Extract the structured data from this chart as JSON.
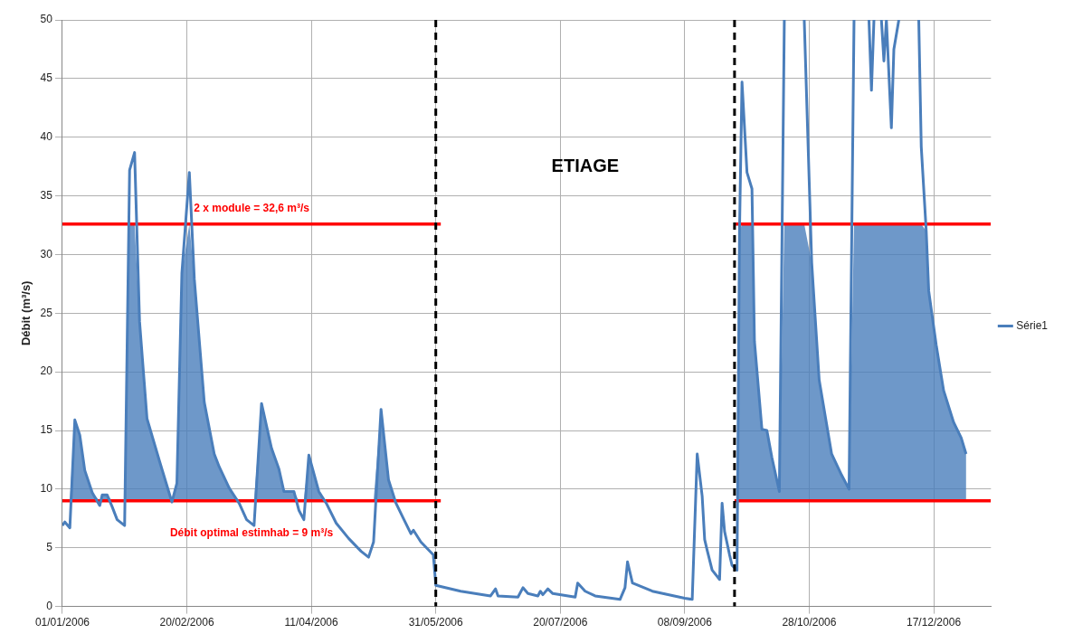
{
  "chart_data": {
    "type": "line",
    "ylabel": "Débit (m³/s)",
    "xlim": [
      "2006-01-01",
      "2007-01-09"
    ],
    "ylim": [
      0,
      50
    ],
    "xticks": [
      {
        "value": "2006-01-01",
        "label": "01/01/2006"
      },
      {
        "value": "2006-02-20",
        "label": "20/02/2006"
      },
      {
        "value": "2006-04-11",
        "label": "11/04/2006"
      },
      {
        "value": "2006-05-31",
        "label": "31/05/2006"
      },
      {
        "value": "2006-07-20",
        "label": "20/07/2006"
      },
      {
        "value": "2006-09-08",
        "label": "08/09/2006"
      },
      {
        "value": "2006-10-28",
        "label": "28/10/2006"
      },
      {
        "value": "2006-12-17",
        "label": "17/12/2006"
      }
    ],
    "yticks": [
      0,
      5,
      10,
      15,
      20,
      25,
      30,
      35,
      40,
      45,
      50
    ],
    "grid": true,
    "legend": "right",
    "marker": "none",
    "line_style": "solid",
    "series": [
      {
        "name": "Série1",
        "color": "#4a7ebb",
        "x": [
          "2006-01-01",
          "2006-01-02",
          "2006-01-04",
          "2006-01-06",
          "2006-01-08",
          "2006-01-10",
          "2006-01-13",
          "2006-01-16",
          "2006-01-17",
          "2006-01-19",
          "2006-01-21",
          "2006-01-23",
          "2006-01-26",
          "2006-01-28",
          "2006-01-30",
          "2006-02-01",
          "2006-02-04",
          "2006-02-09",
          "2006-02-14",
          "2006-02-16",
          "2006-02-18",
          "2006-02-21",
          "2006-02-23",
          "2006-02-27",
          "2006-03-03",
          "2006-03-05",
          "2006-03-09",
          "2006-03-13",
          "2006-03-16",
          "2006-03-19",
          "2006-03-22",
          "2006-03-26",
          "2006-03-29",
          "2006-03-31",
          "2006-04-04",
          "2006-04-06",
          "2006-04-08",
          "2006-04-10",
          "2006-04-14",
          "2006-04-17",
          "2006-04-21",
          "2006-04-26",
          "2006-05-01",
          "2006-05-04",
          "2006-05-06",
          "2006-05-09",
          "2006-05-12",
          "2006-05-15",
          "2006-05-18",
          "2006-05-21",
          "2006-05-22",
          "2006-05-25",
          "2006-05-30",
          "2006-05-31",
          "2006-06-10",
          "2006-06-22",
          "2006-06-24",
          "2006-06-25",
          "2006-07-03",
          "2006-07-05",
          "2006-07-07",
          "2006-07-11",
          "2006-07-12",
          "2006-07-13",
          "2006-07-15",
          "2006-07-17",
          "2006-07-26",
          "2006-07-27",
          "2006-07-30",
          "2006-08-03",
          "2006-08-13",
          "2006-08-15",
          "2006-08-16",
          "2006-08-18",
          "2006-08-26",
          "2006-09-08",
          "2006-09-11",
          "2006-09-13",
          "2006-09-15",
          "2006-09-16",
          "2006-09-17",
          "2006-09-19",
          "2006-09-22",
          "2006-09-23",
          "2006-09-24",
          "2006-09-26",
          "2006-09-27",
          "2006-09-29",
          "2006-09-30",
          "2006-10-01",
          "2006-10-03",
          "2006-10-05",
          "2006-10-06",
          "2006-10-09",
          "2006-10-11",
          "2006-10-13",
          "2006-10-16",
          "2006-10-18",
          "2006-10-22",
          "2006-10-26",
          "2006-10-29",
          "2006-11-01",
          "2006-11-06",
          "2006-11-10",
          "2006-11-13",
          "2006-11-15",
          "2006-11-18",
          "2006-11-21",
          "2006-11-22",
          "2006-11-23",
          "2006-11-24",
          "2006-11-26",
          "2006-11-27",
          "2006-11-28",
          "2006-11-30",
          "2006-12-01",
          "2006-12-03",
          "2006-12-07",
          "2006-12-11",
          "2006-12-12",
          "2006-12-14",
          "2006-12-15",
          "2006-12-18",
          "2006-12-21",
          "2006-12-25",
          "2006-12-28",
          "2006-12-30"
        ],
        "values": [
          6.9,
          7.2,
          6.7,
          15.9,
          14.6,
          11.6,
          9.7,
          8.6,
          9.5,
          9.5,
          8.5,
          7.4,
          6.9,
          37.2,
          38.7,
          24.3,
          16.0,
          12.4,
          8.9,
          10.5,
          28.4,
          37.0,
          27.9,
          17.4,
          13.0,
          11.9,
          10.1,
          8.8,
          7.4,
          6.9,
          17.3,
          13.5,
          11.7,
          9.8,
          9.8,
          8.2,
          7.4,
          12.9,
          9.8,
          8.8,
          7.1,
          5.8,
          4.7,
          4.2,
          5.5,
          16.8,
          10.8,
          8.8,
          7.5,
          6.2,
          6.5,
          5.5,
          4.4,
          1.8,
          1.3,
          0.9,
          1.5,
          0.9,
          0.8,
          1.6,
          1.1,
          0.9,
          1.3,
          1.0,
          1.5,
          1.1,
          0.8,
          2.0,
          1.3,
          0.9,
          0.6,
          1.6,
          3.8,
          2.0,
          1.3,
          0.7,
          0.6,
          13.0,
          9.4,
          5.7,
          4.8,
          3.1,
          2.3,
          8.8,
          6.4,
          4.4,
          3.5,
          3.1,
          32.0,
          44.7,
          37.0,
          35.6,
          22.6,
          15.1,
          15.0,
          12.7,
          9.8,
          50,
          null,
          50,
          29.3,
          19.3,
          13.0,
          11.2,
          10.0,
          50,
          null,
          50,
          44.0,
          50,
          null,
          50,
          46.5,
          50,
          40.8,
          47.5,
          50,
          null,
          50,
          39.2,
          32.0,
          26.9,
          22.3,
          18.4,
          15.7,
          14.4,
          13.0
        ],
        "lower": [
          9,
          9,
          9,
          9,
          9,
          9,
          9,
          9,
          9,
          9,
          9,
          9,
          9,
          9,
          9,
          9,
          9,
          9,
          9,
          9,
          9,
          9,
          9,
          9,
          9,
          9,
          9,
          9,
          9,
          9,
          9,
          9,
          9,
          9,
          9,
          9,
          9,
          9,
          9,
          9,
          9,
          9,
          9,
          9,
          9,
          9,
          9,
          9,
          9,
          9,
          9,
          9,
          9,
          9,
          null,
          null,
          null,
          null,
          null,
          null,
          null,
          null,
          null,
          null,
          null,
          null,
          null,
          null,
          null,
          null,
          null,
          null,
          null,
          null,
          null,
          null,
          null,
          null,
          null,
          null,
          null,
          null,
          null,
          null,
          null,
          null,
          null,
          9,
          9,
          9,
          9,
          9,
          9,
          9,
          9,
          9,
          9,
          9,
          9,
          9,
          9,
          9,
          9,
          9,
          9,
          9,
          9,
          9,
          9,
          9,
          9,
          9,
          9,
          9,
          9,
          9,
          9,
          9,
          9,
          9,
          9,
          9,
          9,
          9,
          9,
          9,
          9
        ],
        "upper": [
          9,
          9,
          9,
          15.9,
          14.6,
          11.6,
          9.7,
          9,
          9.5,
          9.5,
          9,
          9,
          9,
          32.6,
          32.6,
          24.3,
          16.0,
          12.4,
          9,
          10.5,
          28.4,
          32.6,
          27.9,
          17.4,
          13.0,
          11.9,
          10.1,
          9,
          9,
          9,
          17.3,
          13.5,
          11.7,
          9.8,
          9.8,
          9,
          9,
          12.9,
          9.8,
          9,
          9,
          9,
          9,
          9,
          9,
          16.8,
          10.8,
          9,
          9,
          9,
          9,
          9,
          9,
          9,
          null,
          null,
          null,
          null,
          null,
          null,
          null,
          null,
          null,
          null,
          null,
          null,
          null,
          null,
          null,
          null,
          null,
          null,
          null,
          null,
          null,
          null,
          null,
          null,
          null,
          null,
          null,
          null,
          null,
          null,
          null,
          null,
          null,
          9,
          32.0,
          32.6,
          32.6,
          32.6,
          22.6,
          15.1,
          15.0,
          12.7,
          9.8,
          32.6,
          32.6,
          32.6,
          29.3,
          19.3,
          13.0,
          11.2,
          10.0,
          32.6,
          32.6,
          32.6,
          32.6,
          32.6,
          32.6,
          32.6,
          32.6,
          32.6,
          32.6,
          32.6,
          32.6,
          32.6,
          32.6,
          32.6,
          32.0,
          26.9,
          22.3,
          18.4,
          15.7,
          14.4,
          13.0
        ]
      },
      {
        "type": "line",
        "color": "#ff0000",
        "x": [
          "2006-01-01",
          "2006-06-02"
        ],
        "values": [
          9,
          9
        ]
      },
      {
        "type": "line",
        "color": "#ff0000",
        "x": [
          "2006-01-01",
          "2006-06-02"
        ],
        "values": [
          32.6,
          32.6
        ]
      },
      {
        "type": "line",
        "color": "#ff0000",
        "x": [
          "2006-09-28",
          "2007-01-09"
        ],
        "values": [
          9,
          9
        ]
      },
      {
        "type": "line",
        "color": "#ff0000",
        "x": [
          "2006-09-28",
          "2007-01-09"
        ],
        "values": [
          32.6,
          32.6
        ]
      }
    ],
    "ref_lines": [
      {
        "axis": "x",
        "value": "2006-05-31",
        "color": "#000000",
        "line_style": "dashed"
      },
      {
        "axis": "x",
        "value": "2006-09-28",
        "color": "#000000",
        "line_style": "dashed"
      }
    ],
    "annotations": [
      "ETIAGE",
      "2 x module = 32,6 m³/s",
      "Débit optimal estimhab = 9 m³/s"
    ]
  }
}
